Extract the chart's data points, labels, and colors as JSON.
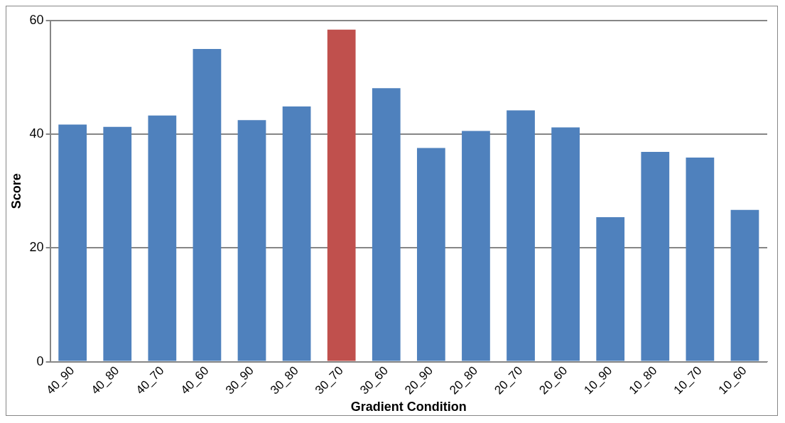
{
  "chart_data": {
    "type": "bar",
    "xlabel": "Gradient Condition",
    "ylabel": "Score",
    "categories": [
      "40_90",
      "40_80",
      "40_70",
      "40_60",
      "30_90",
      "30_80",
      "30_70",
      "30_60",
      "20_90",
      "20_80",
      "20_70",
      "20_60",
      "10_90",
      "10_80",
      "10_70",
      "10_60"
    ],
    "values": [
      41.7,
      41.3,
      43.3,
      55.0,
      42.5,
      44.9,
      58.4,
      48.1,
      37.6,
      40.6,
      44.2,
      41.2,
      25.4,
      36.9,
      35.9,
      26.7
    ],
    "colors": [
      "#4f81bd",
      "#4f81bd",
      "#4f81bd",
      "#4f81bd",
      "#4f81bd",
      "#4f81bd",
      "#c0504d",
      "#4f81bd",
      "#4f81bd",
      "#4f81bd",
      "#4f81bd",
      "#4f81bd",
      "#4f81bd",
      "#4f81bd",
      "#4f81bd",
      "#4f81bd"
    ],
    "ylim": [
      0,
      60
    ],
    "yticks": [
      0,
      20,
      40,
      60
    ],
    "grid": "y",
    "legend": false
  }
}
